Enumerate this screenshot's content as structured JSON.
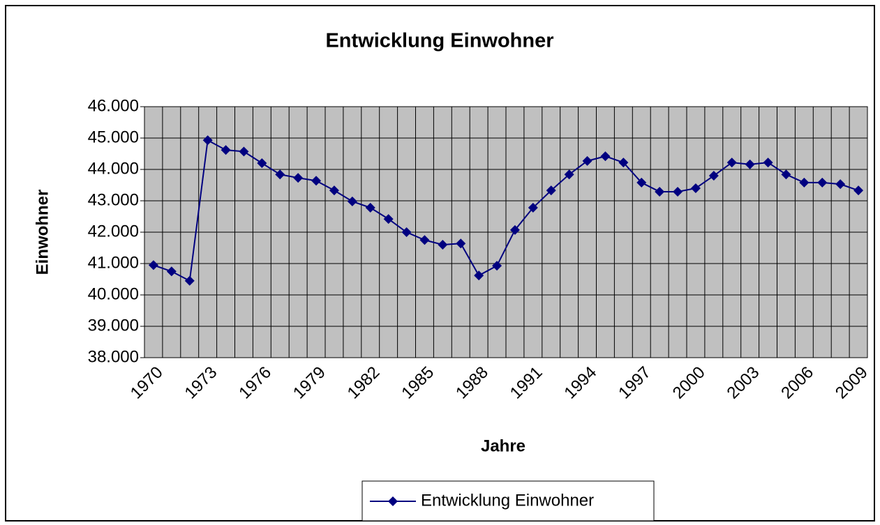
{
  "chart_data": {
    "type": "line",
    "title": "Entwicklung Einwohner",
    "x_label": "Jahre",
    "y_label": "Einwohner",
    "categories": [
      "1970",
      null,
      null,
      "1973",
      null,
      null,
      "1976",
      null,
      null,
      "1979",
      null,
      null,
      "1982",
      null,
      null,
      "1985",
      null,
      null,
      "1988",
      null,
      null,
      "1991",
      null,
      null,
      "1994",
      null,
      null,
      "1997",
      null,
      null,
      "2000",
      null,
      null,
      "2003",
      null,
      null,
      "2006",
      null,
      null,
      "2009"
    ],
    "series": [
      {
        "name": "Entwicklung Einwohner",
        "color": "#000080",
        "values": [
          40950,
          40750,
          40450,
          44930,
          44620,
          44570,
          44200,
          43840,
          43730,
          43640,
          43330,
          42980,
          42780,
          42420,
          42000,
          41750,
          41600,
          41640,
          40620,
          40930,
          42070,
          42780,
          43330,
          43840,
          44270,
          44420,
          44220,
          43580,
          43290,
          43290,
          43400,
          43800,
          44220,
          44160,
          44220,
          43840,
          43580,
          43580,
          43530,
          43330
        ]
      }
    ],
    "ylim": [
      38000,
      46000
    ],
    "yticks": [
      {
        "value": 38000,
        "label": "38.000"
      },
      {
        "value": 39000,
        "label": "39.000"
      },
      {
        "value": 40000,
        "label": "40.000"
      },
      {
        "value": 41000,
        "label": "41.000"
      },
      {
        "value": 42000,
        "label": "42.000"
      },
      {
        "value": 43000,
        "label": "43.000"
      },
      {
        "value": 44000,
        "label": "44.000"
      },
      {
        "value": 45000,
        "label": "45.000"
      },
      {
        "value": 46000,
        "label": "46.000"
      }
    ],
    "grid": true,
    "plot_background": "#c0c0c0",
    "legend": "bottom"
  }
}
